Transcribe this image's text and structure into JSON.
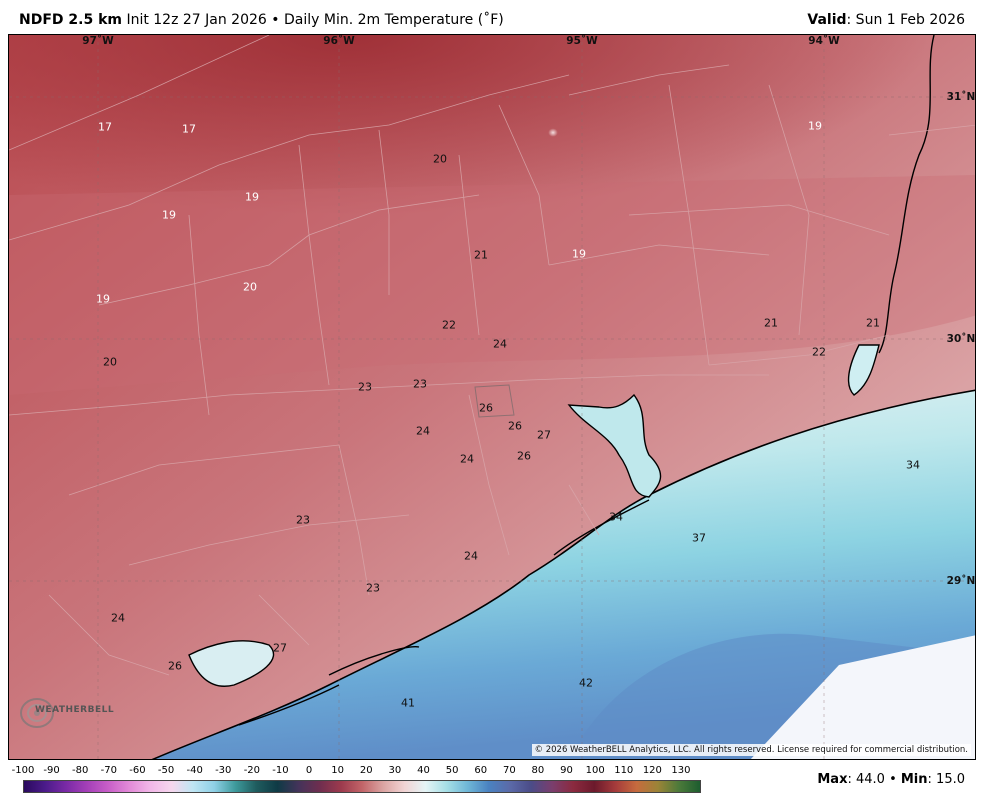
{
  "header": {
    "model": "NDFD 2.5 km",
    "init": "Init 12z 27 Jan 2026",
    "separator": "•",
    "product": "Daily Min. 2m Temperature (˚F)",
    "valid_label": "Valid",
    "valid_date": ": Sun 1 Feb 2026"
  },
  "map": {
    "longitudes": [
      "97˚W",
      "96˚W",
      "95˚W",
      "94˚W"
    ],
    "latitudes": [
      "31˚N",
      "30˚N",
      "29˚N"
    ],
    "temperature_labels": [
      {
        "value": "17",
        "tone": "light"
      },
      {
        "value": "17",
        "tone": "light"
      },
      {
        "value": "19",
        "tone": "light"
      },
      {
        "value": "19",
        "tone": "light"
      },
      {
        "value": "19",
        "tone": "light"
      },
      {
        "value": "20",
        "tone": "light"
      },
      {
        "value": "20",
        "tone": "dark"
      },
      {
        "value": "20",
        "tone": "dark"
      },
      {
        "value": "21",
        "tone": "dark"
      },
      {
        "value": "19",
        "tone": "light"
      },
      {
        "value": "19",
        "tone": "light"
      },
      {
        "value": "22",
        "tone": "dark"
      },
      {
        "value": "24",
        "tone": "dark"
      },
      {
        "value": "21",
        "tone": "dark"
      },
      {
        "value": "21",
        "tone": "dark"
      },
      {
        "value": "22",
        "tone": "dark"
      },
      {
        "value": "23",
        "tone": "dark"
      },
      {
        "value": "23",
        "tone": "dark"
      },
      {
        "value": "26",
        "tone": "dark"
      },
      {
        "value": "26",
        "tone": "dark"
      },
      {
        "value": "27",
        "tone": "dark"
      },
      {
        "value": "24",
        "tone": "dark"
      },
      {
        "value": "24",
        "tone": "dark"
      },
      {
        "value": "26",
        "tone": "dark"
      },
      {
        "value": "34",
        "tone": "dark"
      },
      {
        "value": "34",
        "tone": "dark"
      },
      {
        "value": "37",
        "tone": "dark"
      },
      {
        "value": "23",
        "tone": "dark"
      },
      {
        "value": "24",
        "tone": "dark"
      },
      {
        "value": "23",
        "tone": "dark"
      },
      {
        "value": "24",
        "tone": "dark"
      },
      {
        "value": "27",
        "tone": "dark"
      },
      {
        "value": "26",
        "tone": "dark"
      },
      {
        "value": "42",
        "tone": "dark"
      },
      {
        "value": "41",
        "tone": "dark"
      }
    ],
    "copyright": "© 2026 WeatherBELL Analytics, LLC. All rights reserved. License required for commercial distribution.",
    "logo_text": "WEATHERBELL"
  },
  "colorbar": {
    "ticks": [
      "-100",
      "-90",
      "-80",
      "-70",
      "-60",
      "-50",
      "-40",
      "-30",
      "-20",
      "-10",
      "0",
      "10",
      "20",
      "30",
      "40",
      "50",
      "60",
      "70",
      "80",
      "90",
      "100",
      "110",
      "120",
      "130"
    ],
    "stops": [
      "#2a0a5e",
      "#4b1b8a",
      "#7a2aa6",
      "#a540b8",
      "#c85fc8",
      "#e38bd8",
      "#f2b8e8",
      "#f6d7ee",
      "#bfe6f4",
      "#8fd0e6",
      "#3e9a9c",
      "#1f5c5e",
      "#0f3a45",
      "#44335a",
      "#6f2e4f",
      "#9c3a4d",
      "#c26468",
      "#dba4a2",
      "#f1d3d3",
      "#e5f4f6",
      "#a6dfe6",
      "#6fb7d7",
      "#4a82c1",
      "#5b6aa8",
      "#4b4c88",
      "#7a3e6d",
      "#8b2a3f",
      "#6c1a2c",
      "#a53b3b",
      "#c66b3e",
      "#9c8437",
      "#4c7a3a",
      "#1d5d2f"
    ]
  },
  "summary": {
    "max_label": "Max",
    "max_value": ": 44.0",
    "separator": " • ",
    "min_label": "Min",
    "min_value": ": 15.0"
  }
}
